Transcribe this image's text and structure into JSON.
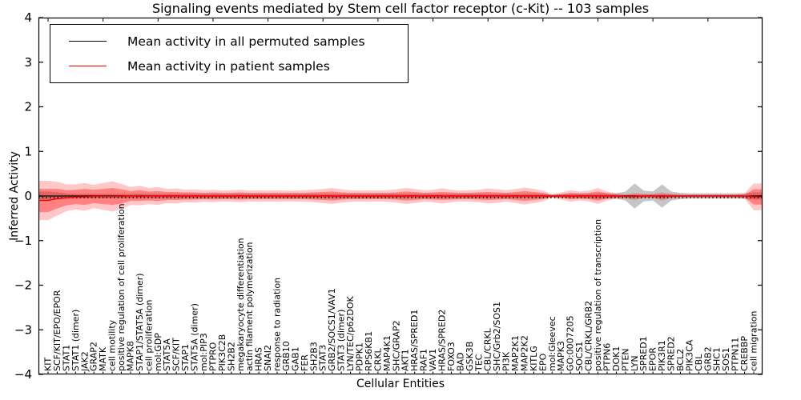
{
  "title": "Signaling events mediated by Stem cell factor receptor (c-Kit) -- 103 samples",
  "legend": {
    "items": [
      {
        "label": "Mean activity in all permuted samples",
        "color": "#000000"
      },
      {
        "label": "Mean activity in patient samples",
        "color": "#ff0000"
      }
    ]
  },
  "chart_data": {
    "type": "area",
    "title": "Signaling events mediated by Stem cell factor receptor (c-Kit) -- 103 samples",
    "xlabel": "Cellular Entities",
    "ylabel": "Inferred Activity",
    "ylim": [
      -4,
      4
    ],
    "yticks": [
      4,
      3,
      2,
      1,
      0,
      -1,
      -2,
      -3,
      -4
    ],
    "grid": false,
    "legend_position": "upper left",
    "colors": {
      "permuted_line": "#000000",
      "patient_line": "#ff0000",
      "patient_band_outer": "rgba(255,0,0,0.22)",
      "patient_band_inner": "rgba(255,0,0,0.35)",
      "permuted_band": "rgba(128,128,128,0.45)",
      "axis": "#000000"
    },
    "categories": [
      "KIT",
      "SCF/KIT/EPO/EPOR",
      "STAT1",
      "STAT1 (dimer)",
      "JAK2",
      "GRAP2",
      "MATK",
      "cell motility",
      "positive regulation of cell proliferation",
      "MAPK8",
      "STAP1/STAT5A (dimer)",
      "cell proliferation",
      "mol:GDP",
      "STAT5A",
      "SCF/KIT",
      "STAP1",
      "STAT5A (dimer)",
      "mol:PIP3",
      "PTPRO",
      "PIK3C2B",
      "SH2B2",
      "megakaryocyte differentiation",
      "actin filament polymerization",
      "HRAS",
      "SNAI2",
      "response to radiation",
      "GRB10",
      "GAB1",
      "FER",
      "SH2B3",
      "STAT3",
      "GRB2/SOCS1/VAV1",
      "STAT3 (dimer)",
      "LYN/TEC/p62DOK",
      "PDPK1",
      "RPS6KB1",
      "CRKL",
      "MAP4K1",
      "SHC/GRAP2",
      "AKT1",
      "HRAS/SPRED1",
      "RAF1",
      "VAV1",
      "HRAS/SPRED2",
      "FOXO3",
      "BAD",
      "GSK3B",
      "TEC",
      "CBL/CRKL",
      "SHC/Grb2/SOS1",
      "PI3K",
      "MAP2K1",
      "MAP2K2",
      "KITLG",
      "EPO",
      "mol:Gleevec",
      "MAPK3",
      "GO:0007205",
      "SOCS1",
      "CBL/CRKL/GRB2",
      "positive regulation of transcription",
      "PTPN6",
      "DOK1",
      "PTEN",
      "LYN",
      "SPRED1",
      "EPOR",
      "PIK3R1",
      "SPRED2",
      "BCL2",
      "PIK3CA",
      "CBL",
      "GRB2",
      "SHC1",
      "SOS1",
      "PTPN11",
      "CREBBP",
      "cell migration"
    ],
    "series": [
      {
        "name": "Mean activity in all permuted samples",
        "kind": "line",
        "color": "#000000",
        "values": [
          0,
          0,
          0,
          0,
          0,
          0,
          0,
          0,
          0,
          0,
          0,
          0,
          0,
          0,
          0,
          0,
          0,
          0,
          0,
          0,
          0,
          0,
          0,
          0,
          0,
          0,
          0,
          0,
          0,
          0,
          0,
          0,
          0,
          0,
          0,
          0,
          0,
          0,
          0,
          0,
          0,
          0,
          0,
          0,
          0,
          0,
          0,
          0,
          0,
          0,
          0,
          0,
          0,
          0,
          0,
          0,
          0,
          0,
          0,
          0,
          0,
          0,
          0,
          0,
          0,
          0,
          0,
          0,
          0,
          0,
          0,
          0,
          0,
          0,
          0,
          0,
          0,
          0
        ]
      },
      {
        "name": "permuted spread",
        "kind": "band",
        "center": "permuted",
        "color": "rgba(128,128,128,0.45)",
        "half_widths": [
          0.1,
          0.08,
          0.06,
          0.05,
          0.05,
          0.05,
          0.05,
          0.05,
          0.05,
          0.05,
          0.05,
          0.05,
          0.05,
          0.05,
          0.05,
          0.05,
          0.05,
          0.05,
          0.05,
          0.05,
          0.05,
          0.05,
          0.05,
          0.05,
          0.05,
          0.05,
          0.05,
          0.05,
          0.05,
          0.05,
          0.05,
          0.05,
          0.05,
          0.05,
          0.05,
          0.05,
          0.05,
          0.05,
          0.05,
          0.05,
          0.05,
          0.05,
          0.05,
          0.05,
          0.05,
          0.05,
          0.05,
          0.05,
          0.05,
          0.05,
          0.05,
          0.05,
          0.05,
          0.05,
          0.05,
          0.03,
          0.04,
          0.05,
          0.05,
          0.05,
          0.06,
          0.06,
          0.06,
          0.1,
          0.28,
          0.12,
          0.1,
          0.26,
          0.1,
          0.07,
          0.06,
          0.06,
          0.06,
          0.06,
          0.06,
          0.06,
          0.06,
          0.08
        ]
      },
      {
        "name": "patient spread (outer)",
        "kind": "band",
        "center": "patient",
        "color": "rgba(255,0,0,0.22)",
        "half_widths": [
          0.44,
          0.38,
          0.3,
          0.28,
          0.31,
          0.26,
          0.3,
          0.34,
          0.28,
          0.2,
          0.22,
          0.18,
          0.2,
          0.16,
          0.17,
          0.14,
          0.15,
          0.13,
          0.14,
          0.12,
          0.13,
          0.14,
          0.12,
          0.13,
          0.12,
          0.13,
          0.12,
          0.12,
          0.13,
          0.14,
          0.16,
          0.18,
          0.15,
          0.13,
          0.12,
          0.13,
          0.12,
          0.13,
          0.15,
          0.18,
          0.16,
          0.13,
          0.14,
          0.17,
          0.14,
          0.12,
          0.13,
          0.14,
          0.17,
          0.15,
          0.13,
          0.16,
          0.19,
          0.16,
          0.12,
          0.04,
          0.08,
          0.13,
          0.1,
          0.12,
          0.18,
          0.1,
          0.06,
          0.05,
          0.08,
          0.05,
          0.05,
          0.09,
          0.05,
          0.04,
          0.04,
          0.04,
          0.04,
          0.04,
          0.04,
          0.04,
          0.06,
          0.3
        ]
      },
      {
        "name": "patient spread (inner)",
        "kind": "band",
        "center": "patient",
        "color": "rgba(255,0,0,0.35)",
        "half_widths": [
          0.26,
          0.22,
          0.17,
          0.16,
          0.18,
          0.15,
          0.17,
          0.19,
          0.16,
          0.11,
          0.12,
          0.1,
          0.11,
          0.09,
          0.09,
          0.08,
          0.08,
          0.07,
          0.08,
          0.07,
          0.07,
          0.08,
          0.07,
          0.07,
          0.07,
          0.07,
          0.07,
          0.07,
          0.07,
          0.08,
          0.09,
          0.1,
          0.08,
          0.07,
          0.07,
          0.07,
          0.07,
          0.07,
          0.08,
          0.1,
          0.09,
          0.07,
          0.08,
          0.09,
          0.08,
          0.07,
          0.07,
          0.08,
          0.09,
          0.08,
          0.07,
          0.09,
          0.11,
          0.09,
          0.07,
          0.02,
          0.04,
          0.07,
          0.06,
          0.07,
          0.1,
          0.06,
          0.03,
          0.03,
          0.04,
          0.03,
          0.03,
          0.05,
          0.03,
          0.02,
          0.02,
          0.02,
          0.02,
          0.02,
          0.02,
          0.02,
          0.03,
          0.17
        ]
      },
      {
        "name": "Mean activity in patient samples",
        "kind": "line",
        "color": "#ff0000",
        "values": [
          -0.1,
          -0.06,
          -0.04,
          -0.02,
          -0.02,
          -0.01,
          -0.01,
          -0.01,
          -0.01,
          0,
          0.01,
          0,
          0,
          0,
          0,
          0,
          0,
          0,
          0,
          0,
          0,
          0,
          0,
          0,
          0,
          0,
          0,
          0,
          0,
          0,
          0,
          0,
          0,
          0,
          0,
          0,
          0,
          0,
          0,
          0,
          0,
          0,
          0,
          0,
          0,
          0,
          0,
          0,
          0,
          0,
          0,
          0,
          0,
          0,
          0,
          0,
          0,
          0,
          0,
          0,
          0,
          0,
          0,
          -0.01,
          -0.01,
          0,
          0,
          -0.01,
          0,
          0,
          0,
          0,
          0,
          0,
          0,
          0,
          0,
          -0.02
        ]
      }
    ]
  }
}
